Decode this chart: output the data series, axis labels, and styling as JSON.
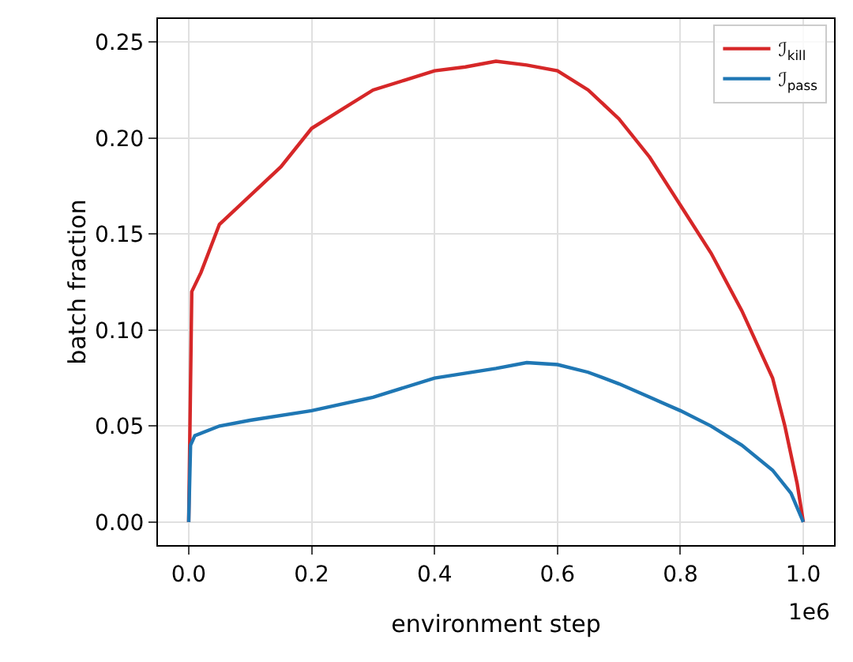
{
  "chart_data": {
    "type": "line",
    "xlabel": "environment step",
    "ylabel": "batch fraction",
    "annotations": [
      "1e6"
    ],
    "xlim": [
      -0.05,
      1.05
    ],
    "xticks": [
      {
        "value": 0,
        "label": "0.0"
      },
      0.2,
      0.4,
      0.6,
      0.8,
      {
        "value": 1,
        "label": "1.0"
      }
    ],
    "ylim": [
      -0.012,
      0.262
    ],
    "yticks": [
      {
        "value": 0,
        "label": "0.00"
      },
      0.05,
      {
        "value": 0.1,
        "label": "0.10"
      },
      0.15,
      {
        "value": 0.2,
        "label": "0.20"
      },
      0.25
    ],
    "grid": true,
    "legend": "top right",
    "line_style": "solid",
    "series": [
      {
        "name": "ℐ$_{kill}$",
        "color": "#d62728",
        "x": [
          0,
          0.005,
          0.02,
          0.05,
          0.1,
          0.15,
          0.2,
          0.25,
          0.3,
          0.35,
          0.4,
          0.45,
          0.5,
          0.55,
          0.6,
          0.65,
          0.7,
          0.75,
          0.8,
          0.85,
          0.9,
          0.95,
          0.97,
          0.99,
          1
        ],
        "values": [
          0,
          0.12,
          0.13,
          0.155,
          0.17,
          0.185,
          0.205,
          0.215,
          0.225,
          0.23,
          0.235,
          0.237,
          0.24,
          0.238,
          0.235,
          0.225,
          0.21,
          0.19,
          0.165,
          0.14,
          0.11,
          0.075,
          0.05,
          0.02,
          0
        ]
      },
      {
        "name": "ℐ$_{pass}$",
        "color": "#1f77b4",
        "x": [
          0,
          0.003,
          0.01,
          0.05,
          0.1,
          0.2,
          0.3,
          0.4,
          0.5,
          0.55,
          0.6,
          0.65,
          0.7,
          0.75,
          0.8,
          0.85,
          0.9,
          0.95,
          0.98,
          1
        ],
        "values": [
          0,
          0.04,
          0.045,
          0.05,
          0.053,
          0.058,
          0.065,
          0.075,
          0.08,
          0.083,
          0.082,
          0.078,
          0.072,
          0.065,
          0.058,
          0.05,
          0.04,
          0.027,
          0.015,
          0
        ]
      }
    ]
  }
}
